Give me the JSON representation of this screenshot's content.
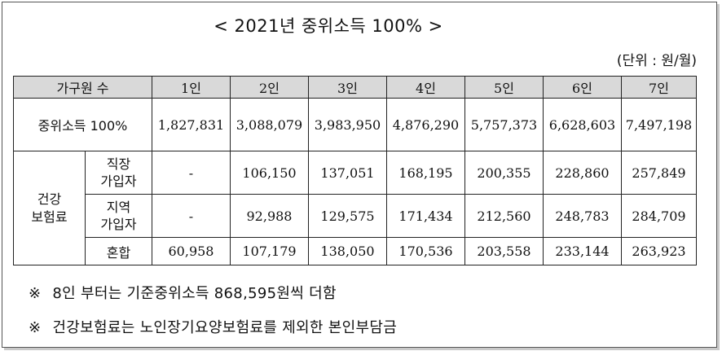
{
  "title": "< 2021년 중위소득 100% >",
  "unit": "(단위 : 원/월)",
  "table": {
    "header": {
      "label": "가구원 수",
      "columns": [
        "1인",
        "2인",
        "3인",
        "4인",
        "5인",
        "6인",
        "7인"
      ]
    },
    "median": {
      "label": "중위소득 100%",
      "values": [
        "1,827,831",
        "3,088,079",
        "3,983,950",
        "4,876,290",
        "5,757,373",
        "6,628,603",
        "7,497,198"
      ]
    },
    "insurance": {
      "label": "건강\n보험료",
      "rows": [
        {
          "label": "직장\n가입자",
          "values": [
            "-",
            "106,150",
            "137,051",
            "168,195",
            "200,355",
            "228,860",
            "257,849"
          ]
        },
        {
          "label": "지역\n가입자",
          "values": [
            "-",
            "92,988",
            "129,575",
            "171,434",
            "212,560",
            "248,783",
            "284,709"
          ]
        },
        {
          "label": "혼합",
          "values": [
            "60,958",
            "107,179",
            "138,050",
            "170,536",
            "203,558",
            "233,144",
            "263,923"
          ]
        }
      ]
    }
  },
  "notes": [
    {
      "symbol": "※",
      "text": "8인 부터는 기준중위소득 868,595원씩 더함"
    },
    {
      "symbol": "※",
      "text": "건강보험료는 노인장기요양보험료를 제외한 본인부담금"
    }
  ]
}
